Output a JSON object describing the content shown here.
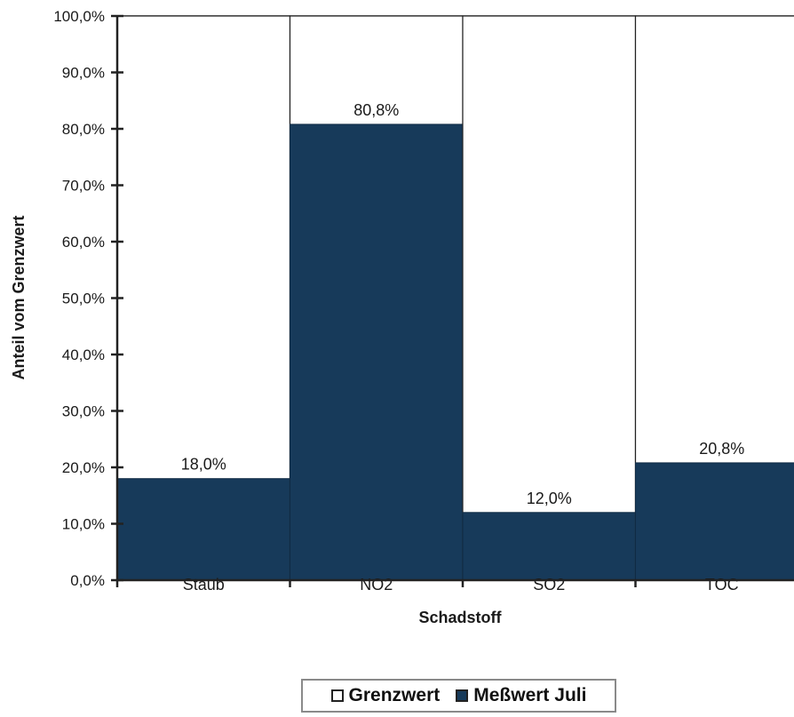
{
  "chart_data": {
    "type": "bar",
    "categories": [
      "Staub",
      "NO2",
      "SO2",
      "TOC"
    ],
    "series": [
      {
        "name": "Grenzwert",
        "values": [
          100,
          100,
          100,
          100
        ]
      },
      {
        "name": "Meßwert Juli",
        "values": [
          18.0,
          80.8,
          12.0,
          20.8
        ]
      }
    ],
    "data_labels": [
      "18,0%",
      "80,8%",
      "12,0%",
      "20,8%"
    ],
    "xlabel": "Schadstoff",
    "ylabel": "Anteil vom Grenzwert",
    "ylim": [
      0,
      100
    ],
    "yticks": [
      0,
      10,
      20,
      30,
      40,
      50,
      60,
      70,
      80,
      90,
      100
    ],
    "ytick_labels": [
      "0,0%",
      "10,0%",
      "20,0%",
      "30,0%",
      "40,0%",
      "50,0%",
      "60,0%",
      "70,0%",
      "80,0%",
      "90,0%",
      "100,0%"
    ],
    "legend_position": "bottom",
    "grid": false
  },
  "colors": {
    "grenzwert": "#ffffff",
    "messwert": "#173a5a",
    "axis": "#222222"
  }
}
